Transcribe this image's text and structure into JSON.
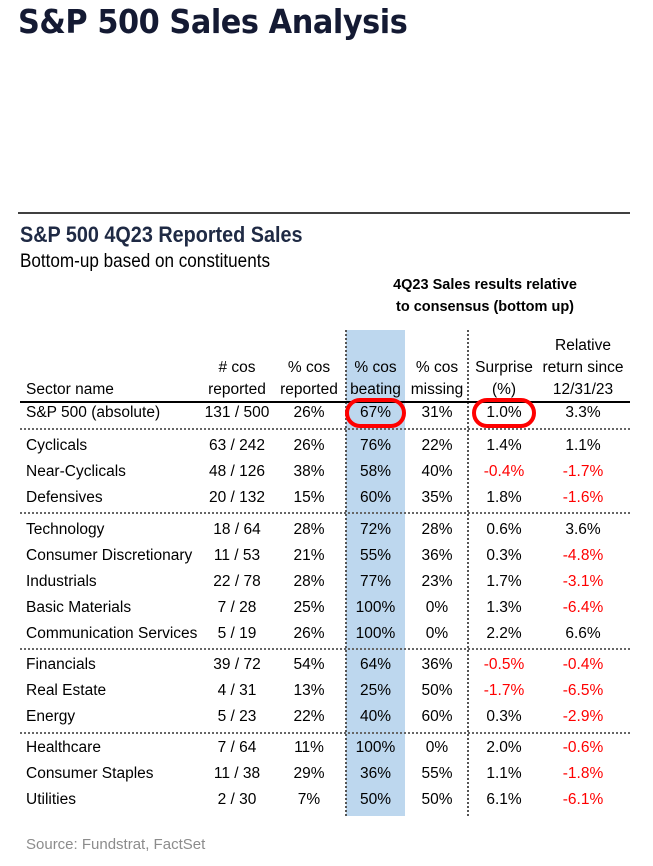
{
  "page_title": "S&P 500 Sales Analysis",
  "table": {
    "title": "S&P 500 4Q23 Reported Sales",
    "subtitle": "Bottom-up based on constituents",
    "group_header_line1": "4Q23 Sales results relative",
    "group_header_line2": "to consensus (bottom up)",
    "highlight_color": "#bdd7ee",
    "negative_color": "#ff0000",
    "columns": {
      "sector": [
        "Sector name"
      ],
      "num_reported": [
        "# cos",
        "reported"
      ],
      "pct_reported": [
        "% cos",
        "reported"
      ],
      "pct_beating": [
        "% cos",
        "beating"
      ],
      "pct_missing": [
        "% cos",
        "missing"
      ],
      "surprise": [
        "Surprise",
        "(%)"
      ],
      "rel_return": [
        "Relative",
        "return since",
        "12/31/23"
      ]
    },
    "rows": [
      {
        "sector": "S&P 500 (absolute)",
        "num": "131 / 500",
        "pct_rep": "26%",
        "beat": "67%",
        "miss": "31%",
        "surp": "1.0%",
        "ret": "3.3%"
      },
      {
        "sector": "Cyclicals",
        "num": "63 / 242",
        "pct_rep": "26%",
        "beat": "76%",
        "miss": "22%",
        "surp": "1.4%",
        "ret": "1.1%"
      },
      {
        "sector": "Near-Cyclicals",
        "num": "48 / 126",
        "pct_rep": "38%",
        "beat": "58%",
        "miss": "40%",
        "surp": "-0.4%",
        "ret": "-1.7%"
      },
      {
        "sector": "Defensives",
        "num": "20 / 132",
        "pct_rep": "15%",
        "beat": "60%",
        "miss": "35%",
        "surp": "1.8%",
        "ret": "-1.6%"
      },
      {
        "sector": "Technology",
        "num": "18 / 64",
        "pct_rep": "28%",
        "beat": "72%",
        "miss": "28%",
        "surp": "0.6%",
        "ret": "3.6%"
      },
      {
        "sector": "Consumer Discretionary",
        "num": "11 / 53",
        "pct_rep": "21%",
        "beat": "55%",
        "miss": "36%",
        "surp": "0.3%",
        "ret": "-4.8%"
      },
      {
        "sector": "Industrials",
        "num": "22 / 78",
        "pct_rep": "28%",
        "beat": "77%",
        "miss": "23%",
        "surp": "1.7%",
        "ret": "-3.1%"
      },
      {
        "sector": "Basic Materials",
        "num": "7 / 28",
        "pct_rep": "25%",
        "beat": "100%",
        "miss": "0%",
        "surp": "1.3%",
        "ret": "-6.4%"
      },
      {
        "sector": "Communication Services",
        "num": "5 / 19",
        "pct_rep": "26%",
        "beat": "100%",
        "miss": "0%",
        "surp": "2.2%",
        "ret": "6.6%"
      },
      {
        "sector": "Financials",
        "num": "39 / 72",
        "pct_rep": "54%",
        "beat": "64%",
        "miss": "36%",
        "surp": "-0.5%",
        "ret": "-0.4%"
      },
      {
        "sector": "Real Estate",
        "num": "4 / 31",
        "pct_rep": "13%",
        "beat": "25%",
        "miss": "50%",
        "surp": "-1.7%",
        "ret": "-6.5%"
      },
      {
        "sector": "Energy",
        "num": "5 / 23",
        "pct_rep": "22%",
        "beat": "40%",
        "miss": "60%",
        "surp": "0.3%",
        "ret": "-2.9%"
      },
      {
        "sector": "Healthcare",
        "num": "7 / 64",
        "pct_rep": "11%",
        "beat": "100%",
        "miss": "0%",
        "surp": "2.0%",
        "ret": "-0.6%"
      },
      {
        "sector": "Consumer Staples",
        "num": "11 / 38",
        "pct_rep": "29%",
        "beat": "36%",
        "miss": "55%",
        "surp": "1.1%",
        "ret": "-1.8%"
      },
      {
        "sector": "Utilities",
        "num": "2 / 30",
        "pct_rep": "7%",
        "beat": "50%",
        "miss": "50%",
        "surp": "6.1%",
        "ret": "-6.1%"
      }
    ],
    "circled_cells": [
      "S&P 500 (absolute) % cos beating",
      "S&P 500 (absolute) Surprise (%)"
    ]
  },
  "source": "Source: Fundstrat, FactSet"
}
